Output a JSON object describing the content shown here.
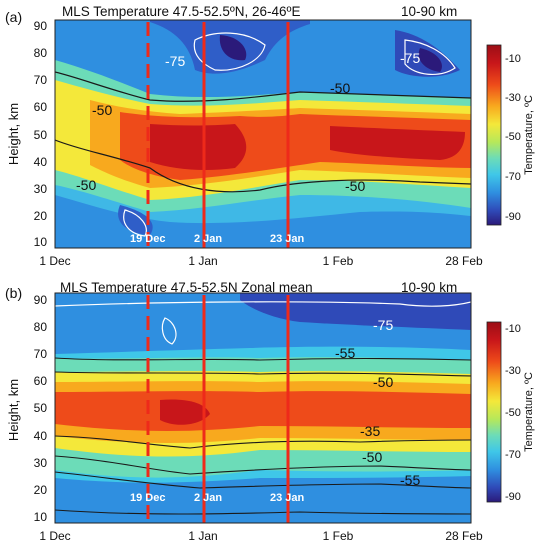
{
  "figure": {
    "colorbar": {
      "ticks": [
        -10,
        -30,
        -50,
        -70,
        -90
      ],
      "label": "Temperature, ºC",
      "colors": [
        "#2b1a7a",
        "#2f4ab8",
        "#2f8fe0",
        "#3fc7e8",
        "#6cdcb8",
        "#b6e85a",
        "#f4e83a",
        "#f8a91e",
        "#ee4b1a",
        "#c8161a",
        "#9c0e16"
      ]
    },
    "events": [
      "19 Dec",
      "2 Jan",
      "23 Jan"
    ]
  },
  "chart_data": [
    {
      "type": "heatmap",
      "panel_label": "(a)",
      "title": "MLS Temperature  47.5-52.5ºN, 26-46ºE",
      "range_label": "10-90 km",
      "ylabel": "Height, km",
      "ylim": [
        8,
        92
      ],
      "yticks": [
        10,
        20,
        30,
        40,
        50,
        60,
        70,
        80,
        90
      ],
      "xticks": [
        "1 Dec",
        "1 Jan",
        "1 Feb",
        "28 Feb"
      ],
      "xlim_days": [
        0,
        89
      ],
      "events": [
        {
          "label": "19 Dec",
          "day": 18,
          "style": "dashed"
        },
        {
          "label": "2 Jan",
          "day": 32,
          "style": "solid"
        },
        {
          "label": "23 Jan",
          "day": 53,
          "style": "solid"
        }
      ],
      "contour_labels": [
        "-75",
        "-75",
        "-50",
        "-50",
        "-50",
        "-50"
      ],
      "stratopause_km": 45,
      "warm_core_c": -10,
      "mesosphere_cold_c": -80
    },
    {
      "type": "heatmap",
      "panel_label": "(b)",
      "title": "MLS Temperature  47.5-52.5N  Zonal mean",
      "range_label": "10-90 km",
      "ylabel": "Height, km",
      "ylim": [
        8,
        92
      ],
      "yticks": [
        10,
        20,
        30,
        40,
        50,
        60,
        70,
        80,
        90
      ],
      "xticks": [
        "1 Dec",
        "1 Jan",
        "1 Feb",
        "28 Feb"
      ],
      "xlim_days": [
        0,
        89
      ],
      "events": [
        {
          "label": "19 Dec",
          "day": 18,
          "style": "dashed"
        },
        {
          "label": "2 Jan",
          "day": 32,
          "style": "solid"
        },
        {
          "label": "23 Jan",
          "day": 53,
          "style": "solid"
        }
      ],
      "contour_labels": [
        "-75",
        "-55",
        "-50",
        "-35",
        "-50",
        "-55"
      ],
      "stratopause_km": 48,
      "warm_core_c": -15,
      "mesosphere_cold_c": -78
    }
  ]
}
